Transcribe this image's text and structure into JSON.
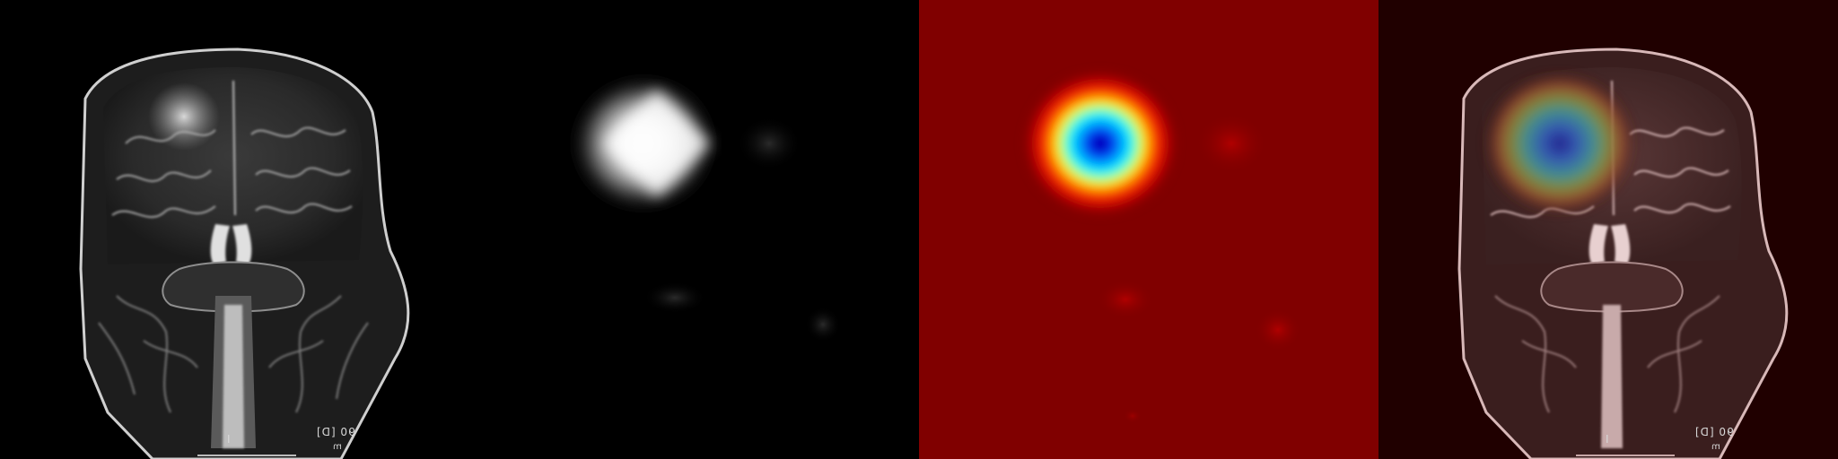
{
  "panels": [
    {
      "name": "mri-original",
      "labels": {
        "left": "I",
        "right": "90 [D]",
        "right_sub": "m"
      }
    },
    {
      "name": "attention-map-grayscale"
    },
    {
      "name": "attention-map-jet"
    },
    {
      "name": "mri-heatmap-overlay",
      "labels": {
        "left": "I",
        "right": "90 [D]",
        "right_sub": "m"
      }
    }
  ],
  "colors": {
    "background": "#000000",
    "jet_background": "#800000",
    "jet_hot": "#ff0000",
    "jet_mid": "#ffff00",
    "jet_cool": "#00ffff",
    "jet_core": "#0000c8"
  }
}
